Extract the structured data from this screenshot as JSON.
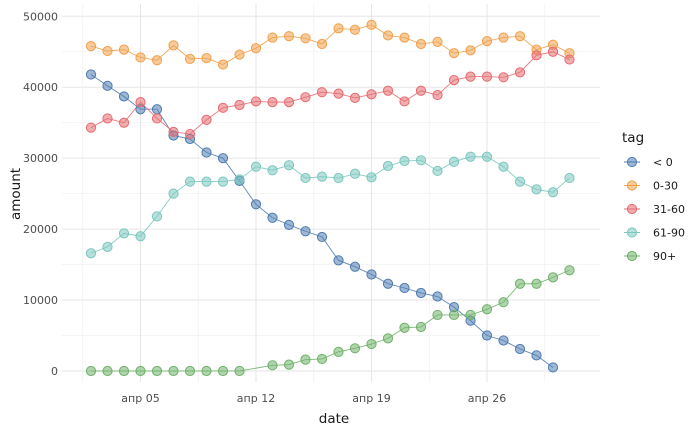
{
  "chart_data": {
    "type": "line",
    "xlabel": "date",
    "ylabel": "amount",
    "x_start": "2023-04-02",
    "x_ticks": [
      "апр 05",
      "апр 12",
      "апр 19",
      "апр 26"
    ],
    "y_ticks": [
      "0",
      "10000",
      "20000",
      "30000",
      "40000",
      "50000"
    ],
    "ylim": [
      0,
      50000
    ],
    "grid": true,
    "legend": {
      "title": "tag",
      "position": "right"
    },
    "series": [
      {
        "name": "< 0",
        "color": "#4f7bb0",
        "values": [
          41800,
          40200,
          38700,
          36900,
          36900,
          33200,
          32700,
          30800,
          30000,
          26800,
          23500,
          21600,
          20600,
          19700,
          18900,
          15600,
          14700,
          13600,
          12300,
          11700,
          11000,
          10500,
          9000,
          7100,
          5000,
          4300,
          3100,
          2200,
          500
        ]
      },
      {
        "name": "0-30",
        "color": "#f0a04b",
        "values": [
          45800,
          45100,
          45300,
          44200,
          43800,
          45900,
          44000,
          44100,
          43200,
          44600,
          45500,
          47000,
          47200,
          46900,
          46100,
          48300,
          48100,
          48800,
          47300,
          47000,
          46100,
          46400,
          44800,
          45200,
          46500,
          47000,
          47200,
          45300,
          46000,
          44800
        ]
      },
      {
        "name": "31-60",
        "color": "#e66b6f",
        "values": [
          34300,
          35600,
          35000,
          37900,
          35600,
          33700,
          33400,
          35400,
          37100,
          37500,
          38000,
          37900,
          37900,
          38600,
          39300,
          39100,
          38500,
          39000,
          39500,
          38000,
          39500,
          38900,
          41000,
          41500,
          41500,
          41400,
          42100,
          44500,
          45000,
          43900
        ]
      },
      {
        "name": "61-90",
        "color": "#7cc7bf",
        "values": [
          16600,
          17500,
          19400,
          19000,
          21800,
          25000,
          26700,
          26700,
          26700,
          27000,
          28800,
          28300,
          29000,
          27200,
          27400,
          27200,
          27800,
          27300,
          28900,
          29600,
          29700,
          28200,
          29500,
          30200,
          30200,
          28800,
          26700,
          25600,
          25200,
          27200
        ]
      },
      {
        "name": "90+",
        "color": "#6fb169",
        "values": [
          0,
          0,
          0,
          0,
          0,
          0,
          0,
          0,
          0,
          0,
          null,
          800,
          900,
          1600,
          1700,
          2700,
          3200,
          3800,
          4600,
          6100,
          6200,
          7900,
          7900,
          7900,
          8700,
          9700,
          12300,
          12300,
          13200,
          14200
        ]
      }
    ]
  }
}
